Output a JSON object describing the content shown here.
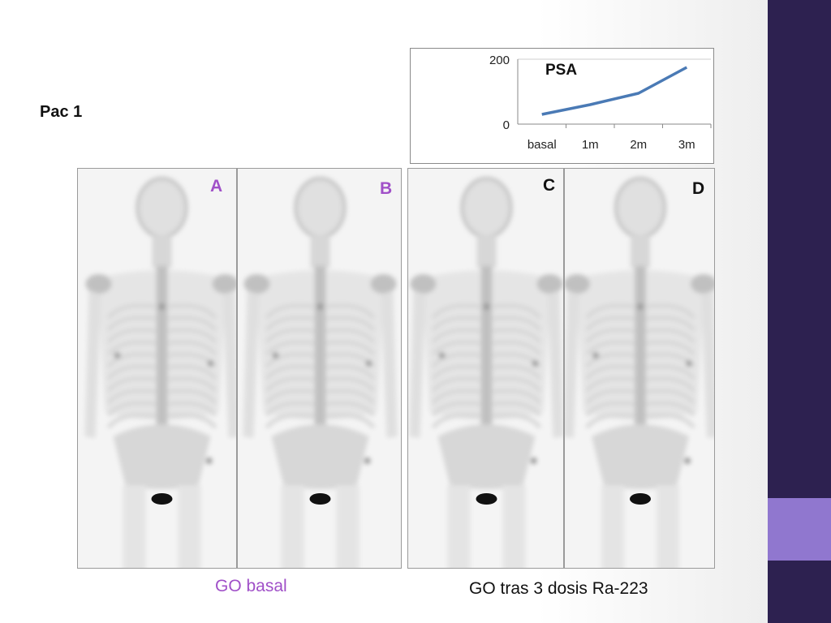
{
  "slide": {
    "title": "Pac 1",
    "colors": {
      "band": "#2d2150",
      "accent": "#9077cf",
      "purple_text": "#a050c8"
    }
  },
  "panels": [
    {
      "letter": "A",
      "color": "#a050c8",
      "view": "anterior"
    },
    {
      "letter": "B",
      "color": "#a050c8",
      "view": "posterior"
    },
    {
      "letter": "C",
      "color": "#111111",
      "view": "anterior"
    },
    {
      "letter": "D",
      "color": "#111111",
      "view": "posterior"
    }
  ],
  "captions": {
    "left": "GO basal",
    "right": "GO tras 3 dosis Ra-223"
  },
  "chart_data": {
    "type": "line",
    "title": "PSA",
    "categories": [
      "basal",
      "1m",
      "2m",
      "3m"
    ],
    "series": [
      {
        "name": "PSA",
        "values": [
          30,
          60,
          95,
          175
        ],
        "color": "#4a7ab5"
      }
    ],
    "y_ticks": [
      "200",
      "0"
    ],
    "ylim": [
      0,
      200
    ],
    "grid": true
  }
}
